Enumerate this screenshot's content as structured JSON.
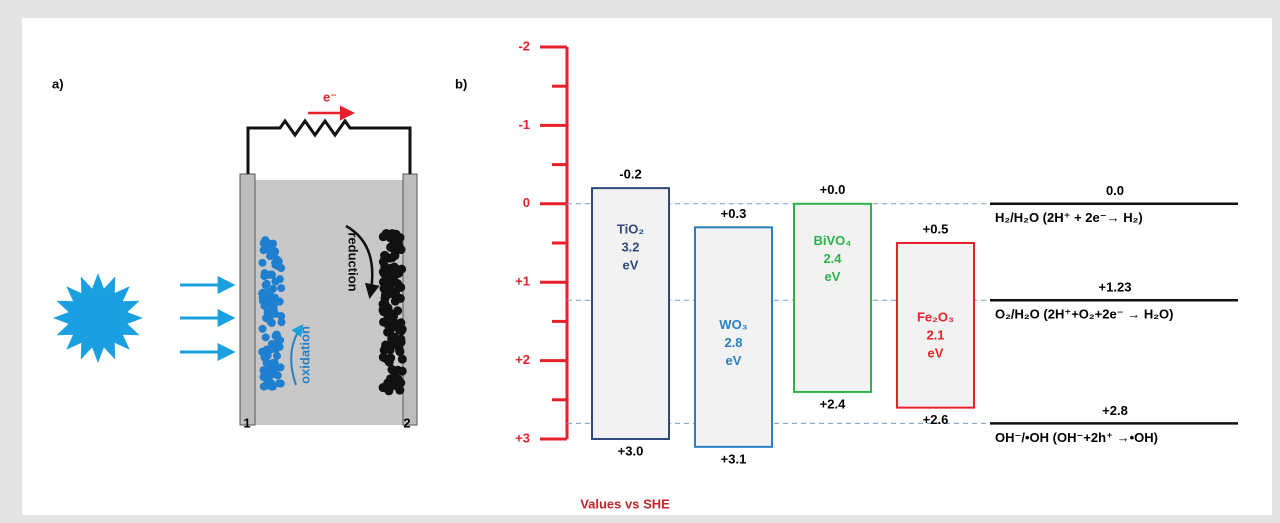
{
  "panel_a": {
    "label": "a)",
    "electron": "e⁻",
    "oxidation": "oxidation",
    "reduction": "reduction",
    "electrodes": [
      "1",
      "2"
    ]
  },
  "chart_data": {
    "type": "floating_bar",
    "panel_label": "b)",
    "xlabel": "Values vs SHE",
    "axis_color": "#e8202a",
    "ylim": [
      -2,
      3
    ],
    "yticks": [
      {
        "value": -2,
        "label": "-2"
      },
      {
        "value": -1,
        "label": "-1"
      },
      0,
      {
        "value": 1,
        "label": "+1"
      },
      {
        "value": 2,
        "label": "+2"
      },
      {
        "value": 3,
        "label": "+3"
      }
    ],
    "yminorticks": [
      -1.5,
      -0.5,
      0.5,
      1.5,
      2.5
    ],
    "gap_unit": "eV",
    "series": [
      {
        "name": "TiO₂",
        "color": "#2e4a7a",
        "values": [
          -0.2,
          3.0
        ],
        "value_labels": [
          "-0.2",
          "+3.0"
        ],
        "gap": 3.2
      },
      {
        "name": "WO₃",
        "color": "#2a7fc1",
        "values": [
          0.3,
          3.1
        ],
        "value_labels": [
          "+0.3",
          "+3.1"
        ],
        "gap": 2.8
      },
      {
        "name": "BiVO₄",
        "color": "#2db34a",
        "values": [
          0.0,
          2.4
        ],
        "value_labels": [
          "+0.0",
          "+2.4"
        ],
        "gap": 2.4
      },
      {
        "name": "Fe₂O₃",
        "color": "#e8202a",
        "values": [
          0.5,
          2.6
        ],
        "value_labels": [
          "+0.5",
          "+2.6"
        ],
        "gap": 2.1
      }
    ],
    "references": [
      {
        "value": 0.0,
        "value_label": "0.0",
        "label": "H₂/H₂O (2H⁺ + 2e⁻→ H₂)"
      },
      {
        "value": 1.23,
        "value_label": "+1.23",
        "label": "O₂/H₂O (2H⁺+O₂+2e⁻ → H₂O)"
      },
      {
        "value": 2.8,
        "value_label": "+2.8",
        "label": "OH⁻/•OH (OH⁻+2h⁺ →•OH)"
      }
    ]
  }
}
